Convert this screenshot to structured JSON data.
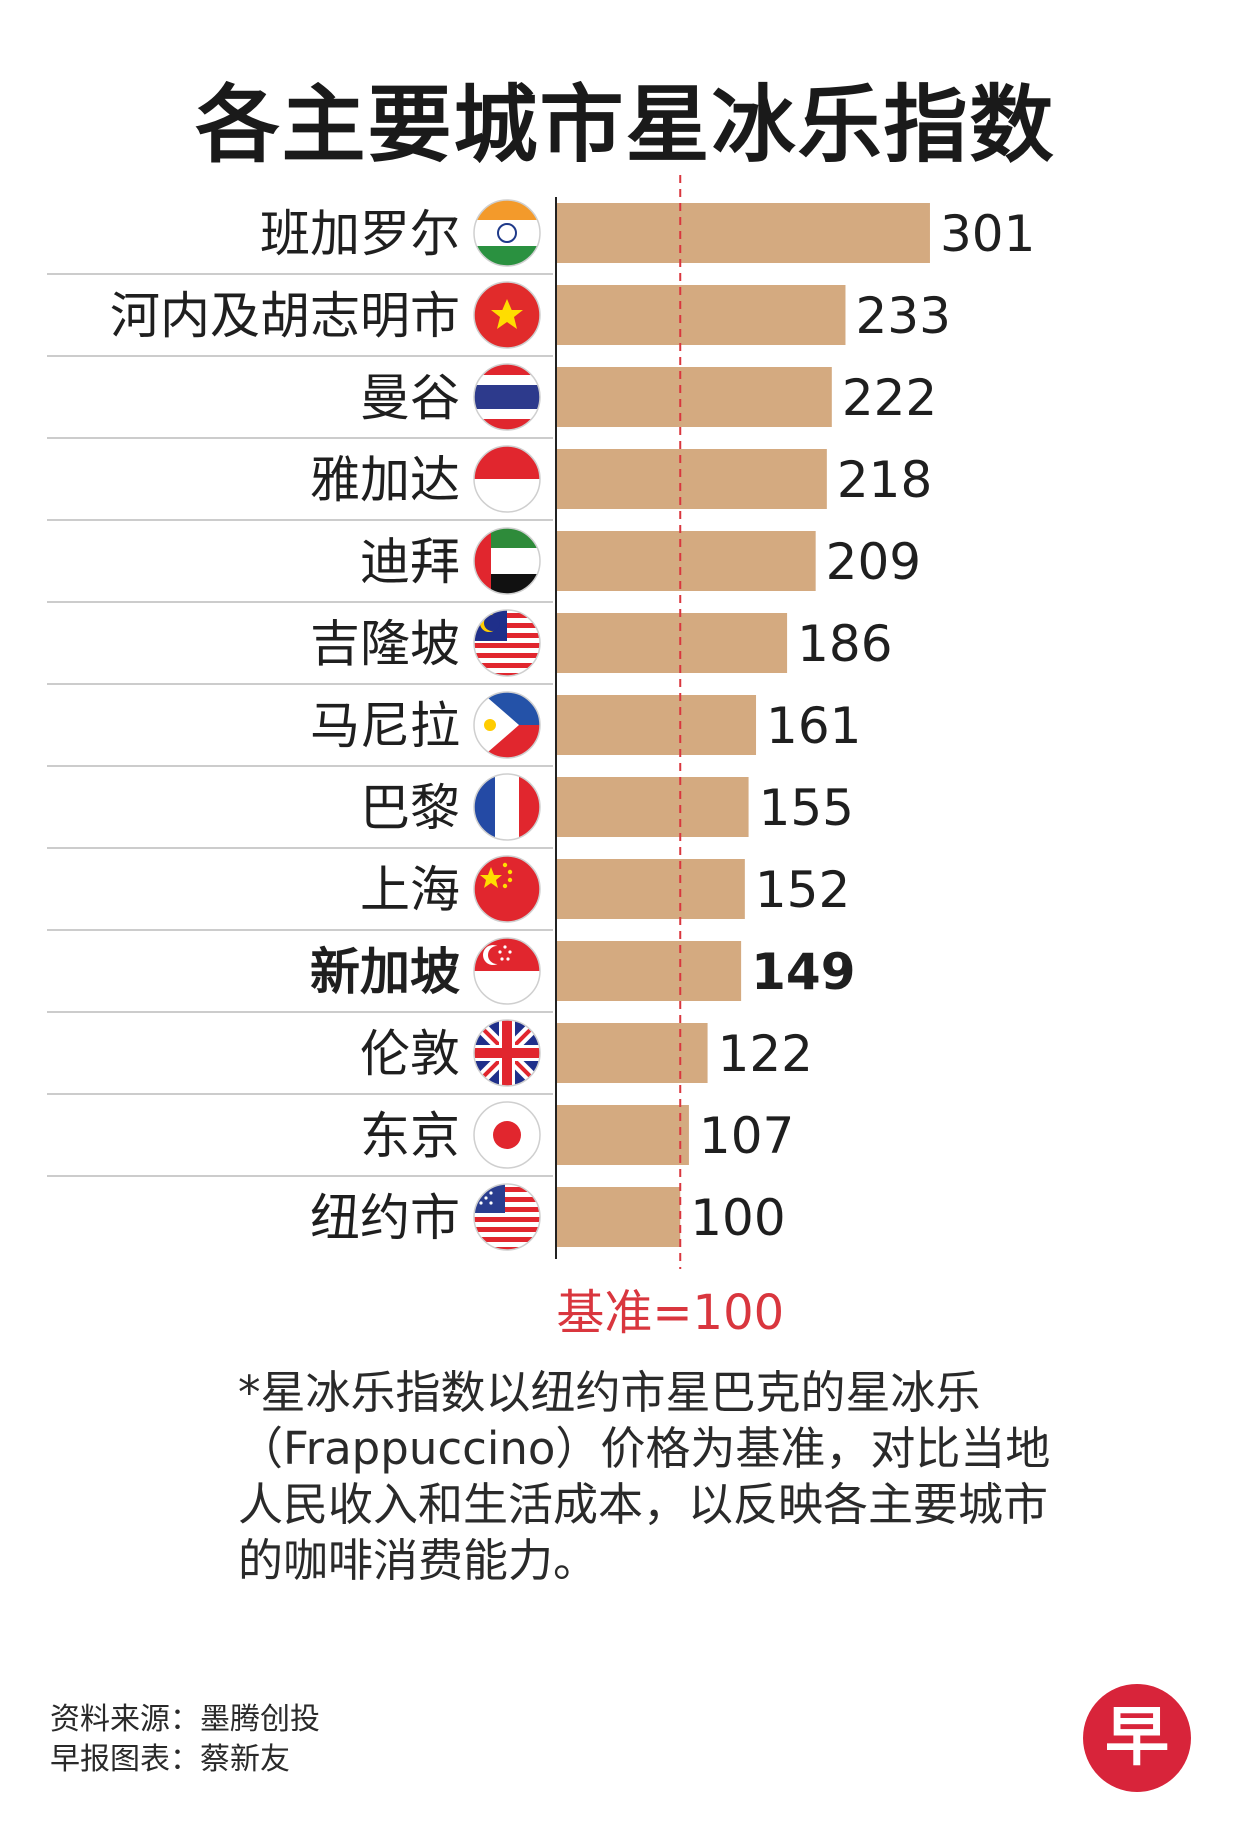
{
  "title": "各主要城市星冰乐指数",
  "chart_data": {
    "type": "bar",
    "orientation": "horizontal",
    "title": "各主要城市星冰乐指数",
    "categories": [
      "班加罗尔",
      "河内及胡志明市",
      "曼谷",
      "雅加达",
      "迪拜",
      "吉隆坡",
      "马尼拉",
      "巴黎",
      "上海",
      "新加坡",
      "伦敦",
      "东京",
      "纽约市"
    ],
    "values": [
      301,
      233,
      222,
      218,
      209,
      186,
      161,
      155,
      152,
      149,
      122,
      107,
      100
    ],
    "value_labels": [
      "301",
      "233",
      "222",
      "218",
      "209",
      "186",
      "161",
      "155",
      "152",
      "149",
      "122",
      "107",
      "100"
    ],
    "highlight": "新加坡",
    "flag_icons": [
      "india-flag-icon",
      "vietnam-flag-icon",
      "thailand-flag-icon",
      "indonesia-flag-icon",
      "uae-flag-icon",
      "malaysia-flag-icon",
      "philippines-flag-icon",
      "france-flag-icon",
      "china-flag-icon",
      "singapore-flag-icon",
      "uk-flag-icon",
      "japan-flag-icon",
      "usa-flag-icon"
    ],
    "baseline": {
      "value": 100,
      "label": "基准=100"
    },
    "xlim": [
      0,
      301
    ],
    "bar_color": "#d4aa80",
    "baseline_color": "#d9363e"
  },
  "footnote": "*星冰乐指数以纽约市星巴克的星冰乐（Frappuccino）价格为基准，对比当地人民收入和生活成本，以反映各主要城市的咖啡消费能力。",
  "credits": {
    "source": "资料来源：墨腾创投",
    "chart_by": "早报图表：蔡新友"
  },
  "logo": {
    "text": "早",
    "icon": "zaobao-logo-icon",
    "color": "#d8243a"
  }
}
